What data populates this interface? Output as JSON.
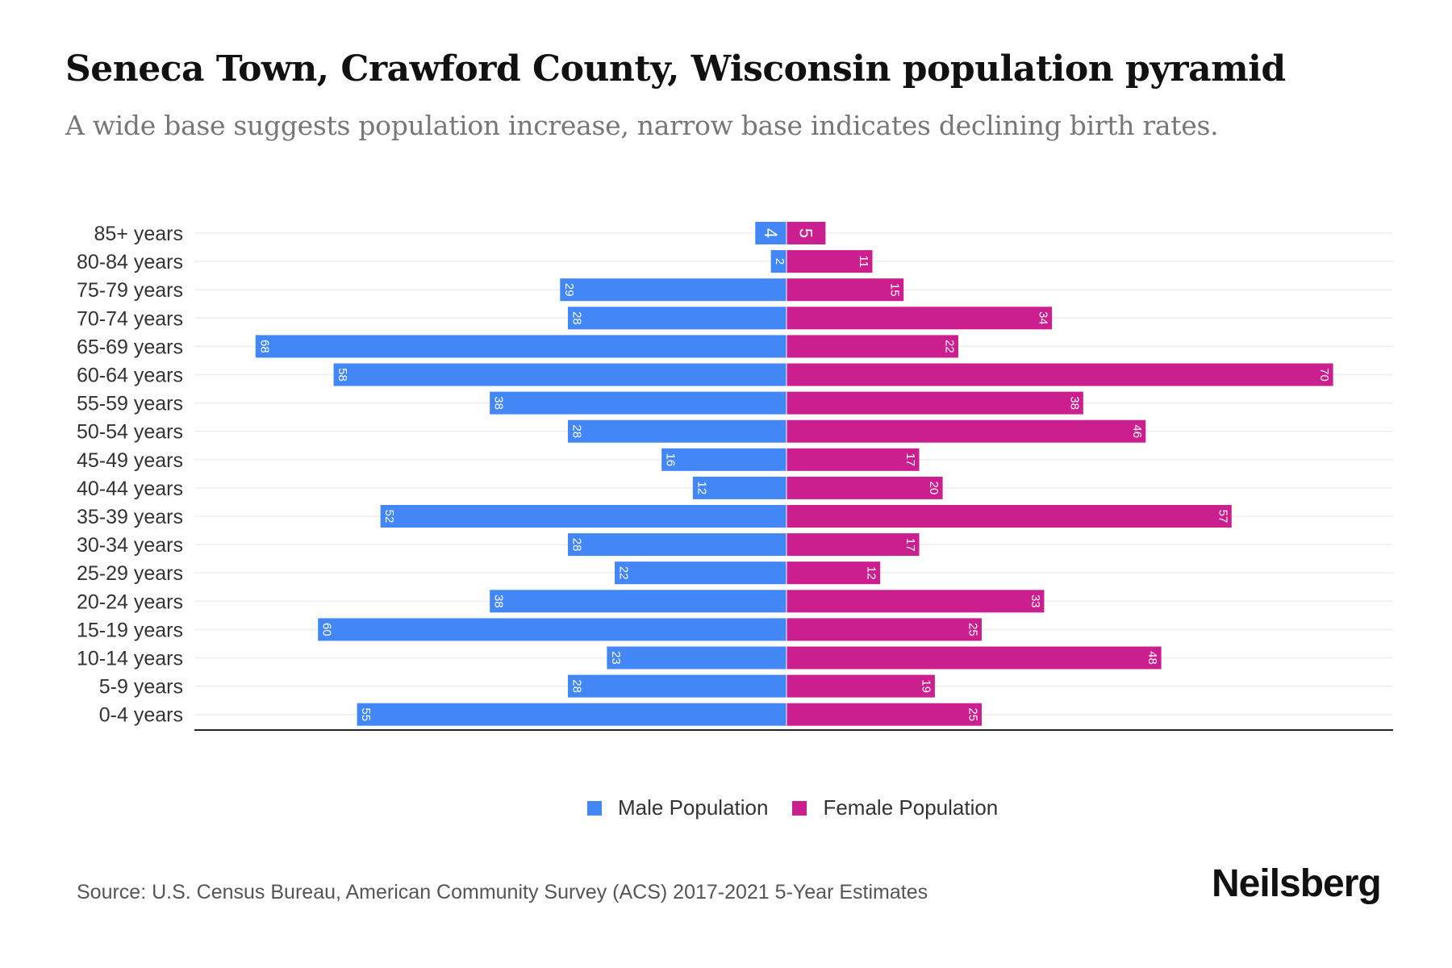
{
  "header": {
    "title": "Seneca Town, Crawford County, Wisconsin population pyramid",
    "subtitle": "A wide base suggests population increase, narrow base indicates declining birth rates."
  },
  "chart_data": {
    "type": "bar",
    "orientation": "horizontal-pyramid",
    "categories": [
      "85+ years",
      "80-84 years",
      "75-79 years",
      "70-74 years",
      "65-69 years",
      "60-64 years",
      "55-59 years",
      "50-54 years",
      "45-49 years",
      "40-44 years",
      "35-39 years",
      "30-34 years",
      "25-29 years",
      "20-24 years",
      "15-19 years",
      "10-14 years",
      "5-9 years",
      "0-4 years"
    ],
    "series": [
      {
        "name": "Male Population",
        "color": "#4287f5",
        "values": [
          4,
          2,
          29,
          28,
          68,
          58,
          38,
          28,
          16,
          12,
          52,
          28,
          22,
          38,
          60,
          23,
          28,
          55
        ]
      },
      {
        "name": "Female Population",
        "color": "#cc1f8f",
        "values": [
          5,
          11,
          15,
          34,
          22,
          70,
          38,
          46,
          17,
          20,
          57,
          17,
          12,
          33,
          25,
          48,
          19,
          25
        ]
      }
    ],
    "legend_position": "bottom-center",
    "grid": true
  },
  "legend": {
    "male": "Male Population",
    "female": "Female Population"
  },
  "footer": {
    "source": "Source: U.S. Census Bureau, American Community Survey (ACS) 2017-2021 5-Year Estimates",
    "logo": "Neilsberg"
  }
}
